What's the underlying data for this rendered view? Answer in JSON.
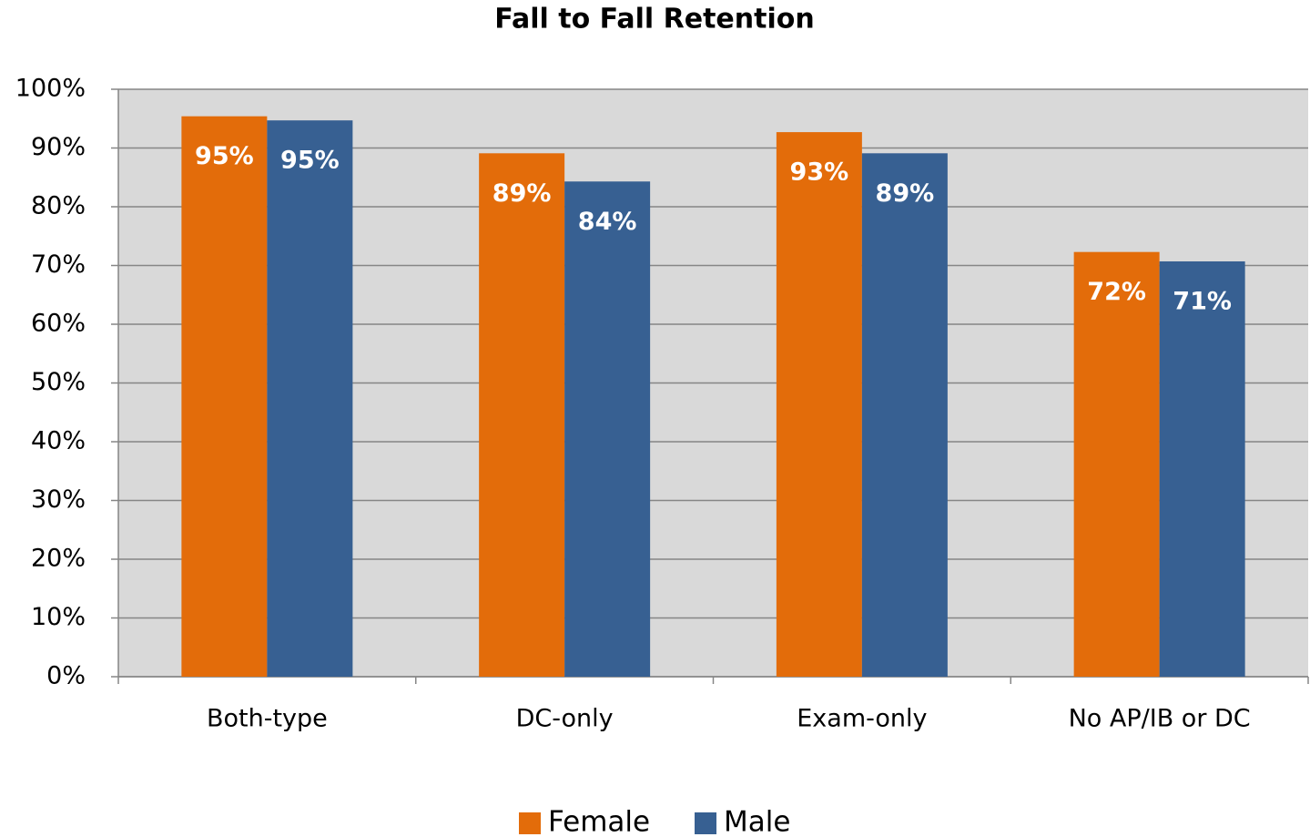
{
  "chart_data": {
    "type": "bar",
    "title": "Fall to Fall Retention",
    "categories": [
      "Both-type",
      "DC-only",
      "Exam-only",
      "No AP/IB or DC"
    ],
    "series": [
      {
        "name": "Female",
        "color": "#e36c0a",
        "values": [
          95.4,
          89.1,
          92.7,
          72.3
        ],
        "value_labels": [
          "95%",
          "89%",
          "93%",
          "72%"
        ]
      },
      {
        "name": "Male",
        "color": "#376092",
        "values": [
          94.7,
          84.3,
          89.1,
          70.7
        ],
        "value_labels": [
          "95%",
          "84%",
          "89%",
          "71%"
        ]
      }
    ],
    "ylim": [
      0,
      100
    ],
    "yticks": [
      {
        "value": 0,
        "label": "0%"
      },
      {
        "value": 10,
        "label": "10%"
      },
      {
        "value": 20,
        "label": "20%"
      },
      {
        "value": 30,
        "label": "30%"
      },
      {
        "value": 40,
        "label": "40%"
      },
      {
        "value": 50,
        "label": "50%"
      },
      {
        "value": 60,
        "label": "60%"
      },
      {
        "value": 70,
        "label": "70%"
      },
      {
        "value": 80,
        "label": "80%"
      },
      {
        "value": 90,
        "label": "90%"
      },
      {
        "value": 100,
        "label": "100%"
      }
    ],
    "grid": true,
    "legend": "bottom"
  }
}
